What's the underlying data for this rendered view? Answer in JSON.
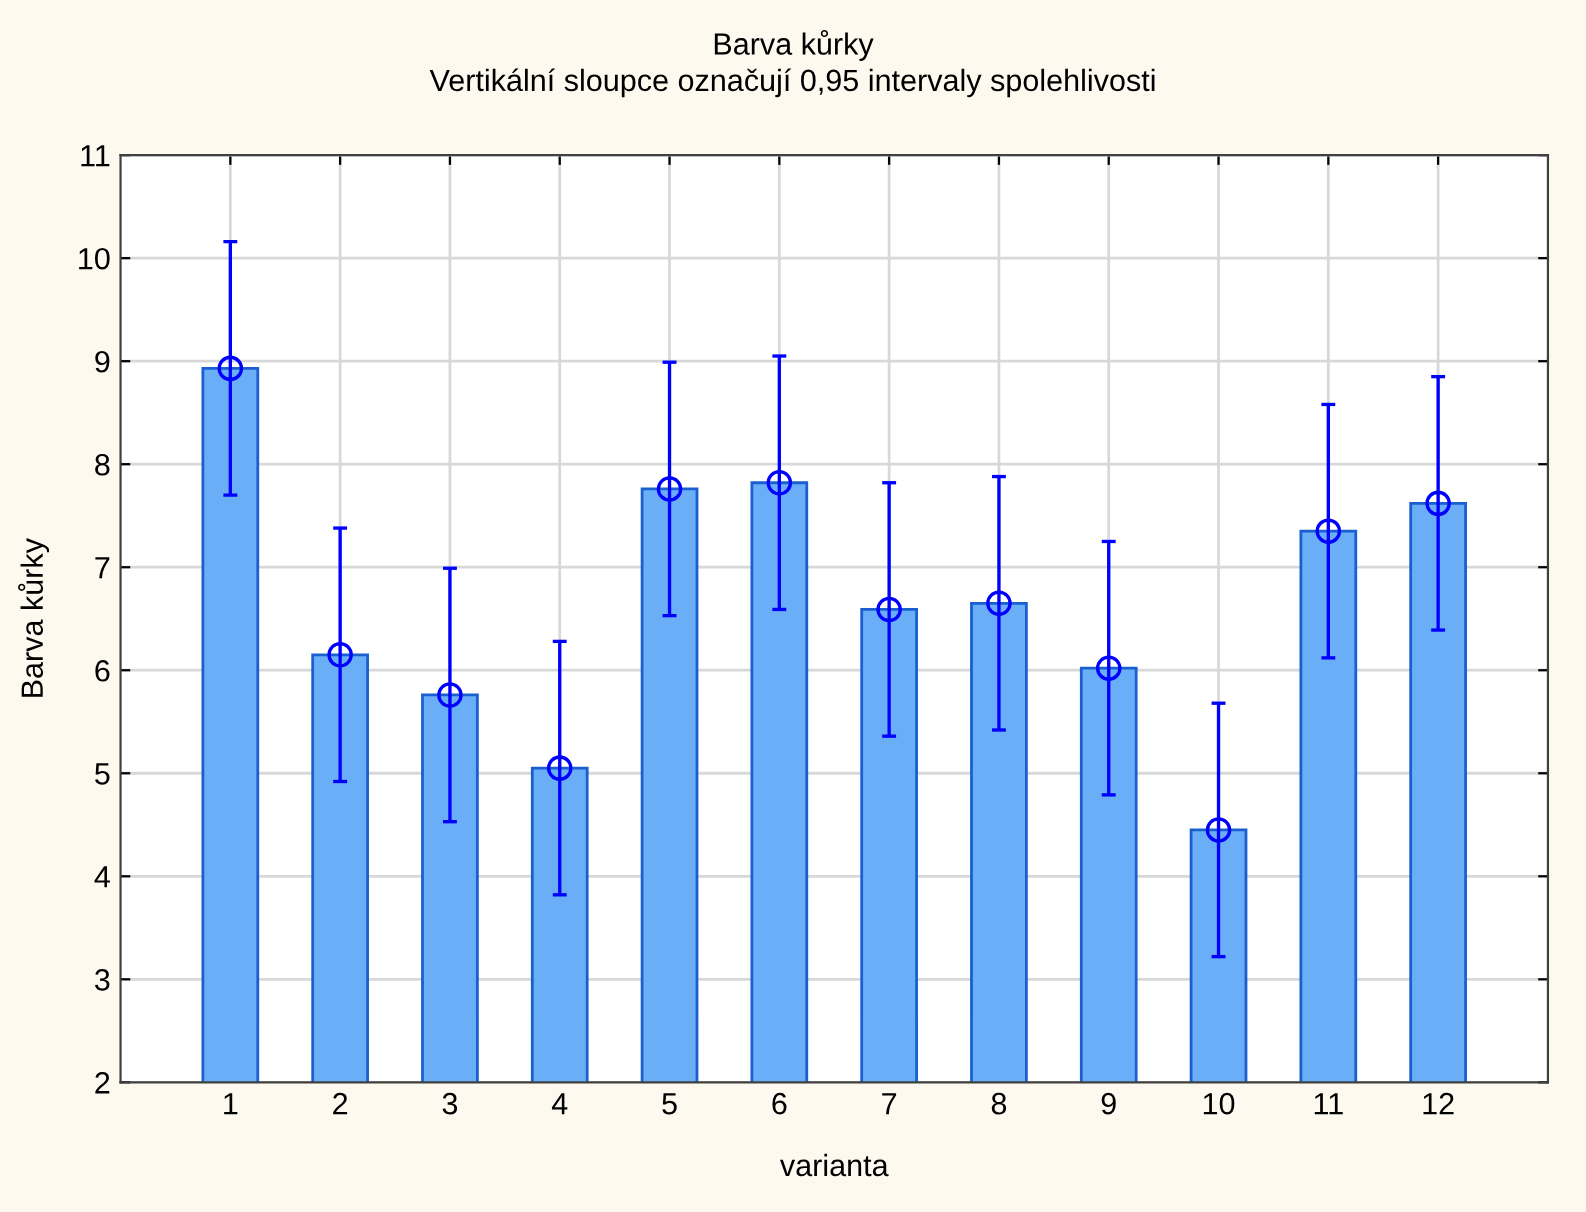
{
  "chart_data": {
    "type": "bar",
    "title": "Barva kůrky",
    "subtitle": "Vertikální sloupce označují 0,95 intervaly spolehlivosti",
    "xlabel": "varianta",
    "ylabel": "Barva kůrky",
    "categories": [
      "1",
      "2",
      "3",
      "4",
      "5",
      "6",
      "7",
      "8",
      "9",
      "10",
      "11",
      "12"
    ],
    "series": [
      {
        "type": "bar",
        "color": "#6aaef8",
        "values": [
          8.93,
          6.15,
          5.76,
          5.05,
          7.76,
          7.82,
          6.59,
          6.65,
          6.02,
          4.45,
          7.35,
          7.62
        ],
        "errors": [
          1.23,
          1.23,
          1.23,
          1.23,
          1.23,
          1.23,
          1.23,
          1.23,
          1.23,
          1.23,
          1.23,
          1.23
        ]
      },
      {
        "type": "scatter",
        "color": "#0000ff",
        "marker": "circle",
        "x": [
          "1",
          "2",
          "3",
          "4",
          "5",
          "6",
          "7",
          "8",
          "9",
          "10",
          "11",
          "12"
        ],
        "values": [
          8.93,
          6.15,
          5.76,
          5.05,
          7.76,
          7.82,
          6.59,
          6.65,
          6.02,
          4.45,
          7.35,
          7.62
        ]
      }
    ],
    "ylim": [
      2,
      11
    ],
    "yticks": [
      2,
      3,
      4,
      5,
      6,
      7,
      8,
      9,
      10,
      11
    ],
    "grid": true
  }
}
